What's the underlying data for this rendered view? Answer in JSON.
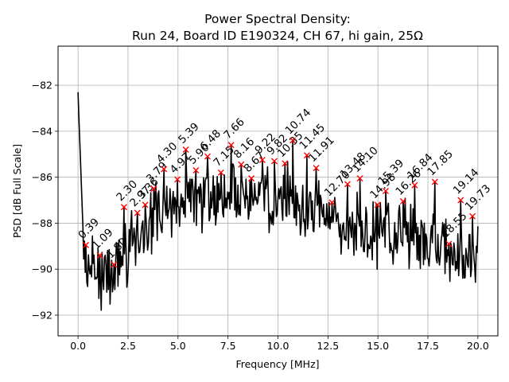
{
  "chart_data": {
    "type": "line",
    "title": "Power Spectral Density:",
    "subtitle": "Run 24, Board ID E190324, CH 67, hi gain, 25Ω",
    "xlabel": "Frequency [MHz]",
    "ylabel": "PSD [dB Full Scale]",
    "xlim": [
      -1.0,
      21.0
    ],
    "ylim": [
      -92.9,
      -80.3
    ],
    "xticks": [
      0.0,
      2.5,
      5.0,
      7.5,
      10.0,
      12.5,
      15.0,
      17.5,
      20.0
    ],
    "xtick_labels": [
      "0.0",
      "2.5",
      "5.0",
      "7.5",
      "10.0",
      "12.5",
      "15.0",
      "17.5",
      "20.0"
    ],
    "yticks": [
      -82,
      -84,
      -86,
      -88,
      -90,
      -92
    ],
    "ytick_labels": [
      "−82",
      "−84",
      "−86",
      "−88",
      "−90",
      "−92"
    ],
    "grid": true,
    "line_color": "#000000",
    "marker_color": "#ff0000",
    "series": [
      {
        "name": "PSD",
        "trend": {
          "x": [
            0.0,
            0.15,
            0.3,
            0.5,
            1.0,
            1.5,
            2.0,
            3.0,
            4.0,
            5.0,
            6.0,
            7.0,
            8.0,
            9.0,
            10.0,
            11.0,
            12.0,
            13.0,
            14.0,
            15.0,
            16.0,
            17.0,
            18.0,
            19.0,
            20.0
          ],
          "y": [
            -82.3,
            -86.0,
            -89.5,
            -89.6,
            -90.2,
            -90.4,
            -89.8,
            -88.6,
            -87.7,
            -87.2,
            -87.0,
            -86.8,
            -86.7,
            -86.8,
            -86.9,
            -87.1,
            -87.6,
            -88.0,
            -88.2,
            -88.4,
            -88.5,
            -88.6,
            -89.0,
            -89.5,
            -89.0
          ]
        }
      }
    ],
    "peaks": [
      {
        "label": "0.39",
        "x": 0.39,
        "y": -88.95
      },
      {
        "label": "1.09",
        "x": 1.09,
        "y": -89.4
      },
      {
        "label": "1.80",
        "x": 1.8,
        "y": -89.8
      },
      {
        "label": "2.30",
        "x": 2.3,
        "y": -87.3
      },
      {
        "label": "2.97",
        "x": 2.97,
        "y": -87.55
      },
      {
        "label": "3.36",
        "x": 3.36,
        "y": -87.2
      },
      {
        "label": "3.79",
        "x": 3.79,
        "y": -86.5
      },
      {
        "label": "4.30",
        "x": 4.3,
        "y": -85.65
      },
      {
        "label": "4.97",
        "x": 4.97,
        "y": -86.1
      },
      {
        "label": "5.39",
        "x": 5.39,
        "y": -84.8
      },
      {
        "label": "5.90",
        "x": 5.9,
        "y": -85.7
      },
      {
        "label": "6.48",
        "x": 6.48,
        "y": -85.1
      },
      {
        "label": "7.15",
        "x": 7.15,
        "y": -85.8
      },
      {
        "label": "7.66",
        "x": 7.66,
        "y": -84.6
      },
      {
        "label": "8.16",
        "x": 8.16,
        "y": -85.45
      },
      {
        "label": "8.67",
        "x": 8.67,
        "y": -86.05
      },
      {
        "label": "9.22",
        "x": 9.22,
        "y": -85.25
      },
      {
        "label": "9.82",
        "x": 9.82,
        "y": -85.3
      },
      {
        "label": "10.35",
        "x": 10.35,
        "y": -85.4
      },
      {
        "label": "10.74",
        "x": 10.74,
        "y": -84.4
      },
      {
        "label": "11.45",
        "x": 11.45,
        "y": -85.05
      },
      {
        "label": "11.91",
        "x": 11.91,
        "y": -85.6
      },
      {
        "label": "12.70",
        "x": 12.7,
        "y": -87.1
      },
      {
        "label": "13.48",
        "x": 13.48,
        "y": -86.3
      },
      {
        "label": "14.10",
        "x": 14.1,
        "y": -86.05
      },
      {
        "label": "14.98",
        "x": 14.98,
        "y": -87.2
      },
      {
        "label": "15.39",
        "x": 15.39,
        "y": -86.6
      },
      {
        "label": "16.26",
        "x": 16.26,
        "y": -87.05
      },
      {
        "label": "16.84",
        "x": 16.84,
        "y": -86.35
      },
      {
        "label": "17.85",
        "x": 17.85,
        "y": -86.2
      },
      {
        "label": "18.55",
        "x": 18.55,
        "y": -88.9
      },
      {
        "label": "19.14",
        "x": 19.14,
        "y": -87.0
      },
      {
        "label": "19.73",
        "x": 19.73,
        "y": -87.7
      }
    ]
  }
}
